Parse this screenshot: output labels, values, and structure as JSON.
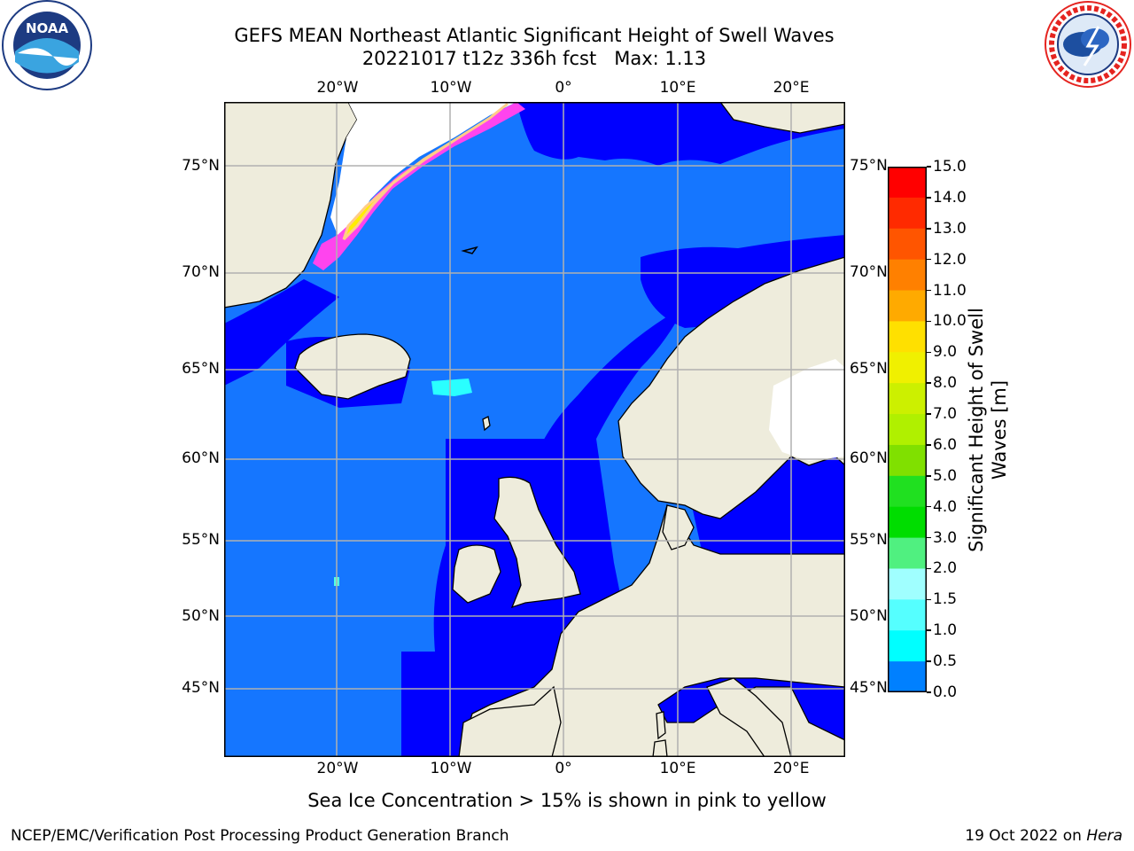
{
  "header": {
    "title_line1": "GEFS MEAN Northeast Atlantic Significant Height of Swell Waves",
    "title_line2": "20221017 t12z 336h fcst   Max: 1.13"
  },
  "logos": {
    "noaa_text": "NOAA",
    "noaa_ring_text": "NATIONAL OCEANIC AND ATMOSPHERIC ADMINISTRATION · U.S. DEPARTMENT OF COMMERCE",
    "nws_ring_text": "NATIONAL WEATHER SERVICE"
  },
  "map": {
    "longitude_ticks": [
      "20°W",
      "10°W",
      "0°",
      "10°E",
      "20°E"
    ],
    "latitude_ticks": [
      "75°N",
      "70°N",
      "65°N",
      "60°N",
      "55°N",
      "50°N",
      "45°N"
    ],
    "colors": {
      "land": "#eeecdc",
      "ocean_deep": "#1576ff",
      "ocean_shallow": "#0000ff",
      "ice_white": "#ffffff",
      "ice_pink": "#ff44ee",
      "ice_yellow": "#ffee00",
      "cyan_patch": "#2affff",
      "grid": "#b0b0b0",
      "coast": "#000000"
    }
  },
  "colorbar": {
    "label": "Significant Height of Swell\nWaves [m]",
    "ticks": [
      "15.0",
      "14.0",
      "13.0",
      "12.0",
      "11.0",
      "10.0",
      "9.0",
      "8.0",
      "7.0",
      "6.0",
      "5.0",
      "4.0",
      "3.0",
      "2.0",
      "1.5",
      "1.0",
      "0.5",
      "0.0"
    ],
    "colors": [
      "#ff0000",
      "#ff2a00",
      "#ff5500",
      "#ff8000",
      "#ffaa00",
      "#ffe000",
      "#f0f000",
      "#ccf000",
      "#b0f000",
      "#80e000",
      "#20e020",
      "#00dd00",
      "#50f080",
      "#a0ffff",
      "#55ffff",
      "#00ffff",
      "#0080ff",
      "#0000ff"
    ]
  },
  "caption": "Sea Ice Concentration > 15% is shown in pink to yellow",
  "footer": {
    "left": "NCEP/EMC/Verification Post Processing Product Generation Branch",
    "right_prefix": "19 Oct 2022 on ",
    "right_host": "Hera"
  }
}
